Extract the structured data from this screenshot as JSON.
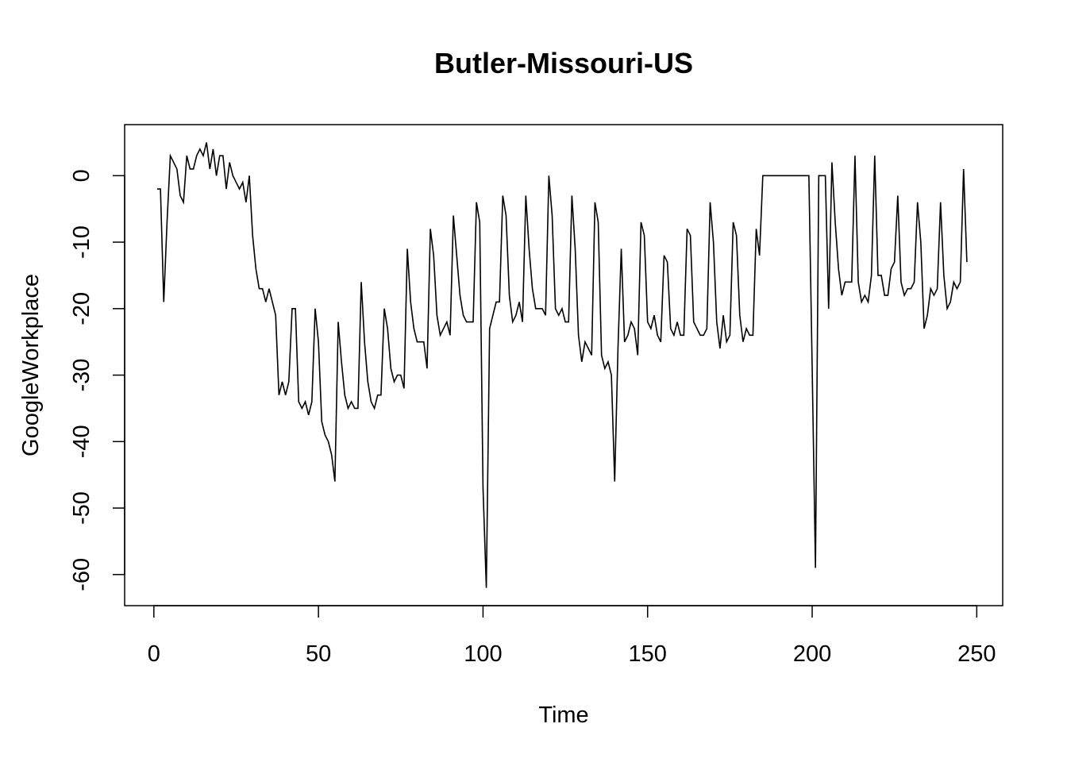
{
  "chart_data": {
    "type": "line",
    "title": "Butler-Missouri-US",
    "xlabel": "Time",
    "ylabel": "GoogleWorkplace",
    "xlim": [
      -8.88,
      257.88
    ],
    "ylim": [
      -64.68,
      7.68
    ],
    "x_ticks": [
      0,
      50,
      100,
      150,
      200,
      250
    ],
    "y_ticks": [
      0,
      -10,
      -20,
      -30,
      -40,
      -50,
      -60
    ],
    "grid": false,
    "legend": "none",
    "line_color": "#000000",
    "series": [
      {
        "x_start": 1,
        "values": [
          -2,
          -2,
          -19,
          -7,
          3,
          2,
          1,
          -3,
          -4,
          3,
          1,
          1,
          3,
          4,
          3,
          5,
          1,
          4,
          0,
          3,
          3,
          -2,
          2,
          0,
          -1,
          -2,
          -1,
          -4,
          0,
          -9,
          -14,
          -17,
          -17,
          -19,
          -17,
          -19,
          -21,
          -33,
          -31,
          -33,
          -31,
          -20,
          -20,
          -34,
          -35,
          -34,
          -36,
          -34,
          -20,
          -25,
          -37,
          -39,
          -40,
          -42,
          -46,
          -22,
          -28,
          -33,
          -35,
          -34,
          -35,
          -35,
          -16,
          -25,
          -31,
          -34,
          -35,
          -33,
          -33,
          -20,
          -23,
          -29,
          -31,
          -30,
          -30,
          -32,
          -11,
          -19,
          -23,
          -25,
          -25,
          -25,
          -29,
          -8,
          -12,
          -21,
          -24,
          -23,
          -22,
          -24,
          -6,
          -12,
          -18,
          -21,
          -22,
          -22,
          -22,
          -4,
          -7,
          -47,
          -62,
          -23,
          -21,
          -19,
          -19,
          -3,
          -6,
          -18,
          -22,
          -21,
          -19,
          -22,
          -3,
          -11,
          -17,
          -20,
          -20,
          -20,
          -21,
          0,
          -6,
          -20,
          -21,
          -20,
          -22,
          -22,
          -3,
          -11,
          -24,
          -28,
          -25,
          -26,
          -27,
          -4,
          -7,
          -27,
          -29,
          -28,
          -30,
          -46,
          -26,
          -11,
          -25,
          -24,
          -22,
          -23,
          -27,
          -7,
          -9,
          -22,
          -23,
          -21,
          -24,
          -25,
          -12,
          -13,
          -23,
          -24,
          -22,
          -24,
          -24,
          -8,
          -9,
          -22,
          -23,
          -24,
          -24,
          -23,
          -4,
          -10,
          -22,
          -26,
          -21,
          -25,
          -24,
          -7,
          -9,
          -21,
          -25,
          -23,
          -24,
          -24,
          -8,
          -12,
          0,
          0,
          0,
          0,
          0,
          0,
          0,
          0,
          0,
          0,
          0,
          0,
          0,
          0,
          0,
          -29,
          -59,
          0,
          0,
          0,
          -20,
          2,
          -7,
          -14,
          -18,
          -16,
          -16,
          -16,
          3,
          -16,
          -19,
          -18,
          -19,
          -15,
          3,
          -15,
          -15,
          -18,
          -18,
          -14,
          -13,
          -3,
          -16,
          -18,
          -17,
          -17,
          -16,
          -4,
          -10,
          -23,
          -21,
          -17,
          -18,
          -17,
          -4,
          -15,
          -20,
          -19,
          -16,
          -17,
          -16,
          1,
          -13
        ]
      }
    ]
  }
}
